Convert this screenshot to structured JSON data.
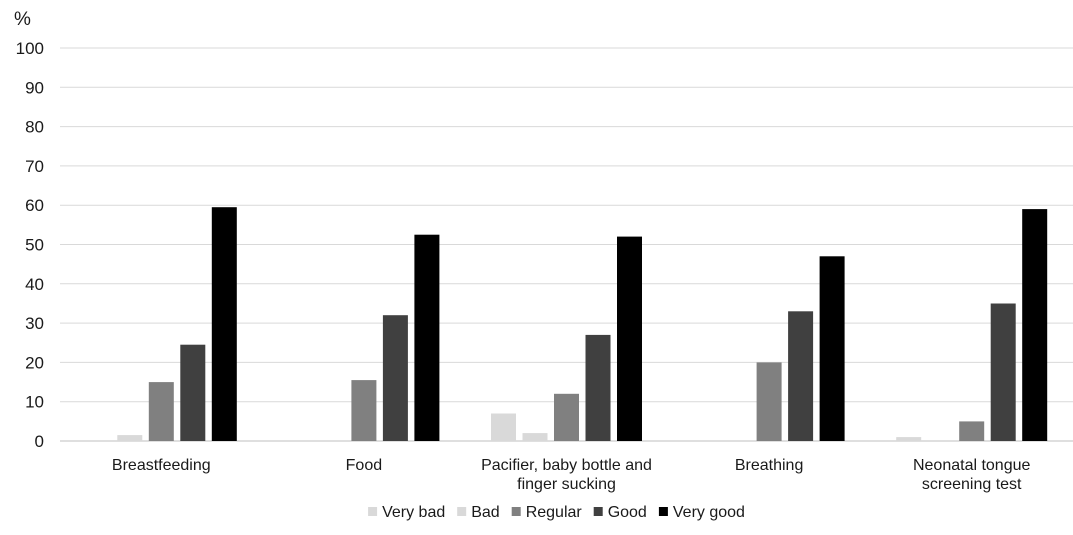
{
  "chart_data": {
    "type": "bar",
    "ylabel": "%",
    "ylim": [
      0,
      100
    ],
    "yticks": [
      0,
      10,
      20,
      30,
      40,
      50,
      60,
      70,
      80,
      90,
      100
    ],
    "grid": true,
    "legend_position": "bottom",
    "categories": [
      [
        "Breastfeeding"
      ],
      [
        "Food"
      ],
      [
        "Pacifier, baby bottle and",
        "finger sucking"
      ],
      [
        "Breathing"
      ],
      [
        "Neonatal tongue",
        "screening test"
      ]
    ],
    "series": [
      {
        "name": "Very bad",
        "color": "#d9d9d9",
        "values": [
          0,
          0,
          7,
          0,
          1
        ]
      },
      {
        "name": "Bad",
        "color": "#d9d9d9",
        "values": [
          1.5,
          0,
          2,
          0,
          0
        ]
      },
      {
        "name": "Regular",
        "color": "#808080",
        "values": [
          15,
          15.5,
          12,
          20,
          5
        ]
      },
      {
        "name": "Good",
        "color": "#404040",
        "values": [
          24.5,
          32,
          27,
          33,
          35
        ]
      },
      {
        "name": "Very good",
        "color": "#000000",
        "values": [
          59.5,
          52.5,
          52,
          47,
          59
        ]
      }
    ]
  }
}
